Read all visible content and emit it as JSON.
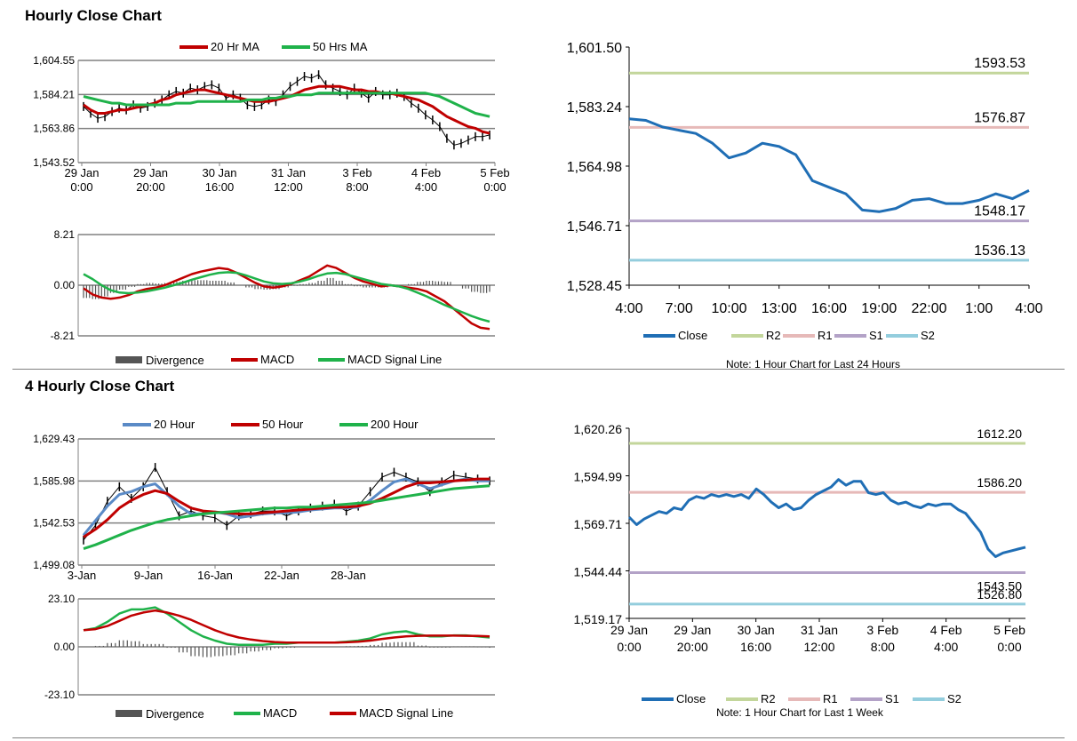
{
  "sections": {
    "hourly": {
      "title": "Hourly Close Chart"
    },
    "four_hourly": {
      "title": "4 Hourly Close Chart"
    }
  },
  "colors": {
    "red": "#c00000",
    "green": "#1fb24a",
    "blue": "#1f6eb5",
    "lightblue": "#5a8ac6",
    "r2": "#c3d69b",
    "r1": "#e6b9b8",
    "s1": "#b3a2c7",
    "s2": "#93cddd",
    "grid": "#808080",
    "bar": "#555555"
  },
  "chart_data": [
    {
      "id": "hourly_price",
      "type": "line",
      "legend": [
        "20 Hr MA",
        "50 Hrs MA"
      ],
      "yticks": [
        "1,604.55",
        "1,584.21",
        "1,563.86",
        "1,543.52"
      ],
      "ylim": [
        1543.52,
        1604.55
      ],
      "xticks": [
        [
          "29 Jan",
          "0:00"
        ],
        [
          "29 Jan",
          "20:00"
        ],
        [
          "30 Jan",
          "16:00"
        ],
        [
          "31 Jan",
          "12:00"
        ],
        [
          "3 Feb",
          "8:00"
        ],
        [
          "4 Feb",
          "4:00"
        ],
        [
          "5 Feb",
          "0:00"
        ]
      ],
      "series": [
        {
          "name": "Close",
          "values": [
            1577,
            1573,
            1570,
            1571,
            1574,
            1576,
            1575,
            1578,
            1576,
            1577,
            1579,
            1581,
            1584,
            1586,
            1585,
            1588,
            1587,
            1589,
            1590,
            1588,
            1582,
            1584,
            1582,
            1578,
            1577,
            1578,
            1581,
            1580,
            1584,
            1589,
            1592,
            1595,
            1594,
            1596,
            1590,
            1588,
            1586,
            1584,
            1588,
            1585,
            1582,
            1586,
            1584,
            1584,
            1585,
            1583,
            1579,
            1576,
            1572,
            1569,
            1565,
            1558,
            1554,
            1555,
            1557,
            1559,
            1559,
            1560
          ]
        },
        {
          "name": "20 Hr MA",
          "values": [
            1578,
            1575,
            1573,
            1573,
            1574,
            1575,
            1575,
            1576,
            1577,
            1578,
            1579,
            1581,
            1582,
            1584,
            1585,
            1586,
            1587,
            1587,
            1586,
            1585,
            1584,
            1583,
            1582,
            1581,
            1580,
            1580,
            1580,
            1581,
            1582,
            1583,
            1585,
            1587,
            1588,
            1589,
            1589,
            1589,
            1589,
            1588,
            1587,
            1587,
            1586,
            1586,
            1585,
            1585,
            1584,
            1583,
            1582,
            1581,
            1579,
            1577,
            1574,
            1571,
            1569,
            1567,
            1565,
            1564,
            1562,
            1561
          ]
        },
        {
          "name": "50 Hrs MA",
          "values": [
            1583,
            1582,
            1581,
            1580,
            1579,
            1579,
            1578,
            1578,
            1578,
            1578,
            1578,
            1578,
            1578,
            1579,
            1579,
            1579,
            1580,
            1580,
            1580,
            1580,
            1580,
            1580,
            1580,
            1581,
            1581,
            1581,
            1582,
            1582,
            1583,
            1583,
            1584,
            1584,
            1584,
            1585,
            1585,
            1585,
            1585,
            1585,
            1585,
            1585,
            1585,
            1585,
            1585,
            1585,
            1585,
            1585,
            1585,
            1585,
            1585,
            1584,
            1583,
            1581,
            1579,
            1577,
            1575,
            1573,
            1572,
            1571
          ]
        }
      ]
    },
    {
      "id": "hourly_macd",
      "type": "line",
      "legend": [
        "Divergence",
        "MACD",
        "MACD Signal Line"
      ],
      "yticks": [
        "8.21",
        "0.00",
        "-8.21"
      ],
      "ylim": [
        -8.21,
        8.21
      ],
      "series": [
        {
          "name": "MACD",
          "values": [
            -0.5,
            -1.5,
            -2.0,
            -2.2,
            -2.0,
            -1.6,
            -1.0,
            -0.6,
            -0.4,
            0.0,
            0.6,
            1.2,
            1.8,
            2.2,
            2.5,
            2.8,
            2.6,
            2.0,
            1.2,
            0.4,
            -0.2,
            -0.4,
            -0.2,
            0.2,
            0.8,
            1.4,
            2.3,
            3.2,
            2.8,
            2.0,
            1.2,
            0.6,
            0.2,
            -0.2,
            0.0,
            -0.2,
            -0.4,
            -0.6,
            -1.0,
            -1.8,
            -2.6,
            -3.8,
            -5.0,
            -6.2,
            -6.9,
            -7.1,
            -7.0
          ]
        },
        {
          "name": "MACD Signal Line",
          "values": [
            1.8,
            1.0,
            0.0,
            -0.8,
            -1.2,
            -1.3,
            -1.2,
            -1.0,
            -0.7,
            -0.4,
            0.0,
            0.4,
            0.9,
            1.3,
            1.7,
            2.0,
            2.1,
            2.0,
            1.6,
            1.1,
            0.6,
            0.3,
            0.2,
            0.3,
            0.6,
            1.0,
            1.5,
            1.9,
            2.0,
            1.8,
            1.4,
            1.0,
            0.6,
            0.2,
            0.0,
            -0.2,
            -0.6,
            -1.2,
            -1.8,
            -2.5,
            -3.2,
            -3.8,
            -4.4,
            -5.0,
            -5.5,
            -5.9
          ]
        }
      ]
    },
    {
      "id": "hourly_24h",
      "type": "line",
      "legend": [
        "Close",
        "R2",
        "R1",
        "S1",
        "S2"
      ],
      "note": "Note: 1 Hour Chart for Last 24 Hours",
      "yticks": [
        "1,601.50",
        "1,583.24",
        "1,564.98",
        "1,546.71",
        "1,528.45"
      ],
      "ylim": [
        1528.45,
        1601.5
      ],
      "xticks": [
        "4:00",
        "7:00",
        "10:00",
        "13:00",
        "16:00",
        "19:00",
        "22:00",
        "1:00",
        "4:00"
      ],
      "levels": [
        {
          "name": "R2",
          "value": 1593.53,
          "label": "1593.53"
        },
        {
          "name": "R1",
          "value": 1576.87,
          "label": "1576.87"
        },
        {
          "name": "S1",
          "value": 1548.17,
          "label": "1548.17"
        },
        {
          "name": "S2",
          "value": 1536.13,
          "label": "1536.13"
        }
      ],
      "x": [
        0,
        1,
        2,
        3,
        4,
        5,
        6,
        7,
        8,
        9,
        10,
        11,
        12,
        13,
        14,
        15,
        16,
        17,
        18,
        19,
        20,
        21,
        22,
        23,
        24
      ],
      "values": [
        1579.5,
        1579,
        1577,
        1576,
        1575,
        1572,
        1567.5,
        1569,
        1572,
        1571,
        1568.5,
        1560.5,
        1558.5,
        1556.5,
        1551.5,
        1551,
        1552,
        1554.5,
        1555,
        1553.5,
        1553.5,
        1554.5,
        1556.5,
        1555,
        1557.5
      ]
    },
    {
      "id": "four_hourly_price",
      "type": "line",
      "legend": [
        "20 Hour",
        "50 Hour",
        "200 Hour"
      ],
      "yticks": [
        "1,629.43",
        "1,585.98",
        "1,542.53",
        "1,499.08"
      ],
      "ylim": [
        1499.08,
        1629.43
      ],
      "xticks": [
        "3-Jan",
        "9-Jan",
        "16-Jan",
        "22-Jan",
        "28-Jan"
      ],
      "series": [
        {
          "name": "Close",
          "values": [
            1525,
            1540,
            1565,
            1580,
            1568,
            1580,
            1600,
            1575,
            1550,
            1555,
            1550,
            1548,
            1540,
            1550,
            1552,
            1555,
            1555,
            1550,
            1555,
            1558,
            1560,
            1562,
            1555,
            1560,
            1575,
            1590,
            1595,
            1590,
            1585,
            1575,
            1585,
            1592,
            1590,
            1588,
            1586
          ]
        },
        {
          "name": "20 Hour",
          "values": [
            1530,
            1545,
            1560,
            1572,
            1575,
            1580,
            1583,
            1572,
            1560,
            1552,
            1552,
            1554,
            1552,
            1548,
            1550,
            1552,
            1553,
            1553,
            1554,
            1556,
            1557,
            1558,
            1558,
            1559,
            1566,
            1576,
            1585,
            1588,
            1583,
            1578,
            1582,
            1586,
            1588,
            1586,
            1586
          ]
        },
        {
          "name": "50 Hour",
          "values": [
            1528,
            1536,
            1546,
            1558,
            1566,
            1572,
            1576,
            1573,
            1565,
            1558,
            1555,
            1554,
            1553,
            1552,
            1552,
            1553,
            1554,
            1555,
            1556,
            1557,
            1558,
            1559,
            1559,
            1560,
            1563,
            1568,
            1574,
            1580,
            1584,
            1584,
            1585,
            1586,
            1587,
            1588,
            1588
          ]
        },
        {
          "name": "200 Hour",
          "values": [
            1516,
            1520,
            1525,
            1530,
            1535,
            1539,
            1543,
            1546,
            1548,
            1550,
            1552,
            1553,
            1554,
            1555,
            1556,
            1557,
            1558,
            1558,
            1559,
            1559,
            1560,
            1561,
            1562,
            1563,
            1564,
            1566,
            1568,
            1570,
            1572,
            1574,
            1576,
            1578,
            1579,
            1580,
            1581
          ]
        }
      ]
    },
    {
      "id": "four_hourly_macd",
      "type": "line",
      "legend": [
        "Divergence",
        "MACD",
        "MACD Signal Line"
      ],
      "yticks": [
        "23.10",
        "0.00",
        "-23.10"
      ],
      "ylim": [
        -23.1,
        23.1
      ],
      "series": [
        {
          "name": "MACD",
          "values": [
            8,
            9,
            12,
            16,
            18,
            18,
            19,
            16,
            12,
            8,
            5,
            3,
            1.5,
            1,
            1,
            1,
            1.5,
            1.5,
            2,
            2,
            2,
            2,
            2.5,
            3,
            4,
            6,
            7,
            7.5,
            6,
            5,
            5,
            5.5,
            5.5,
            5,
            4.5
          ]
        },
        {
          "name": "MACD Signal Line",
          "values": [
            8,
            8.5,
            10,
            12.5,
            15,
            16.5,
            17.5,
            16.5,
            15,
            13,
            10.5,
            8,
            6,
            4.5,
            3.5,
            2.8,
            2.3,
            2,
            2,
            2,
            2,
            2,
            2.2,
            2.5,
            3,
            3.8,
            4.5,
            5,
            5.3,
            5.4,
            5.4,
            5.4,
            5.3,
            5.2,
            5
          ]
        }
      ]
    },
    {
      "id": "weekly",
      "type": "line",
      "legend": [
        "Close",
        "R2",
        "R1",
        "S1",
        "S2"
      ],
      "note": "Note: 1 Hour Chart for Last 1 Week",
      "yticks": [
        "1,620.26",
        "1,594.99",
        "1,569.71",
        "1,544.44",
        "1,519.17"
      ],
      "ylim": [
        1519.17,
        1620.26
      ],
      "xticks": [
        [
          "29 Jan",
          "0:00"
        ],
        [
          "29 Jan",
          "20:00"
        ],
        [
          "30 Jan",
          "16:00"
        ],
        [
          "31 Jan",
          "12:00"
        ],
        [
          "3 Feb",
          "8:00"
        ],
        [
          "4 Feb",
          "4:00"
        ],
        [
          "5 Feb",
          "0:00"
        ]
      ],
      "levels": [
        {
          "name": "R2",
          "value": 1612.2,
          "label": "1612.20"
        },
        {
          "name": "R1",
          "value": 1586.2,
          "label": "1586.20"
        },
        {
          "name": "S1",
          "value": 1543.5,
          "label": "1543.50"
        },
        {
          "name": "S2",
          "value": 1526.8,
          "label": "1526.80"
        }
      ],
      "values": [
        1573,
        1569,
        1572,
        1574,
        1576,
        1575,
        1578,
        1577,
        1582,
        1584,
        1583,
        1585,
        1584,
        1585,
        1584,
        1585,
        1583,
        1588,
        1585,
        1581,
        1578,
        1580,
        1577,
        1578,
        1582,
        1585,
        1587,
        1589,
        1593,
        1590,
        1592,
        1592,
        1586,
        1585,
        1586,
        1582,
        1580,
        1581,
        1579,
        1578,
        1580,
        1579,
        1580,
        1580,
        1577,
        1575,
        1570,
        1565,
        1556,
        1552,
        1554,
        1555,
        1556,
        1557
      ]
    }
  ]
}
